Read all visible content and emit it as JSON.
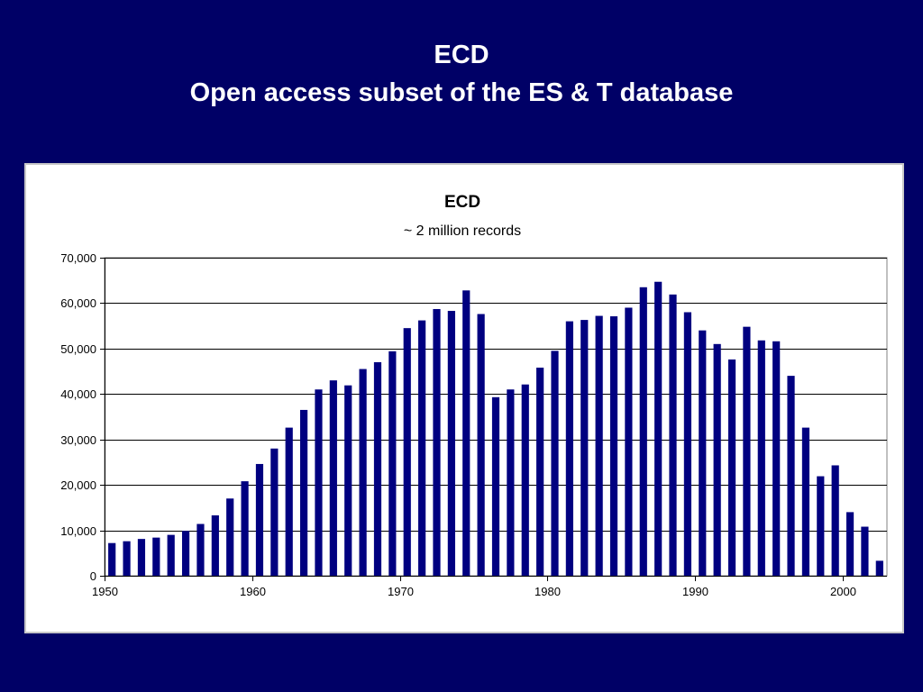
{
  "slide": {
    "title_line1": "ECD",
    "title_line2": "Open access subset of the ES & T database"
  },
  "colors": {
    "background": "#000066",
    "bar": "#000080",
    "title_text": "#ffffff"
  },
  "chart_data": {
    "type": "bar",
    "title": "ECD",
    "subtitle": "~ 2 million records",
    "xlabel": "",
    "ylabel": "",
    "categories": [
      1950,
      1951,
      1952,
      1953,
      1954,
      1955,
      1956,
      1957,
      1958,
      1959,
      1960,
      1961,
      1962,
      1963,
      1964,
      1965,
      1966,
      1967,
      1968,
      1969,
      1970,
      1971,
      1972,
      1973,
      1974,
      1975,
      1976,
      1977,
      1978,
      1979,
      1980,
      1981,
      1982,
      1983,
      1984,
      1985,
      1986,
      1987,
      1988,
      1989,
      1990,
      1991,
      1992,
      1993,
      1994,
      1995,
      1996,
      1997,
      1998,
      1999,
      2000,
      2001,
      2002
    ],
    "values": [
      7200,
      7600,
      8100,
      8400,
      9000,
      9900,
      11400,
      13300,
      17000,
      20800,
      24600,
      28000,
      32600,
      36500,
      41000,
      43000,
      41900,
      45500,
      47000,
      49400,
      54500,
      56200,
      58700,
      58300,
      62800,
      57600,
      39300,
      41000,
      42100,
      45800,
      49500,
      56000,
      56300,
      57200,
      57100,
      59000,
      63500,
      64700,
      61900,
      58000,
      54000,
      51000,
      47600,
      54800,
      51800,
      51600,
      44000,
      32600,
      21900,
      24300,
      14000,
      10800,
      3300
    ],
    "ylim": [
      0,
      70000
    ],
    "xlim": [
      1950,
      2002
    ],
    "y_ticks": [
      0,
      10000,
      20000,
      30000,
      40000,
      50000,
      60000,
      70000
    ],
    "y_tick_labels": [
      "0",
      "10,000",
      "20,000",
      "30,000",
      "40,000",
      "50,000",
      "60,000",
      "70,000"
    ],
    "x_ticks": [
      1950,
      1960,
      1970,
      1980,
      1990,
      2000
    ],
    "x_tick_labels": [
      "1950",
      "1960",
      "1970",
      "1980",
      "1990",
      "2000"
    ],
    "grid": true,
    "legend": "none"
  }
}
